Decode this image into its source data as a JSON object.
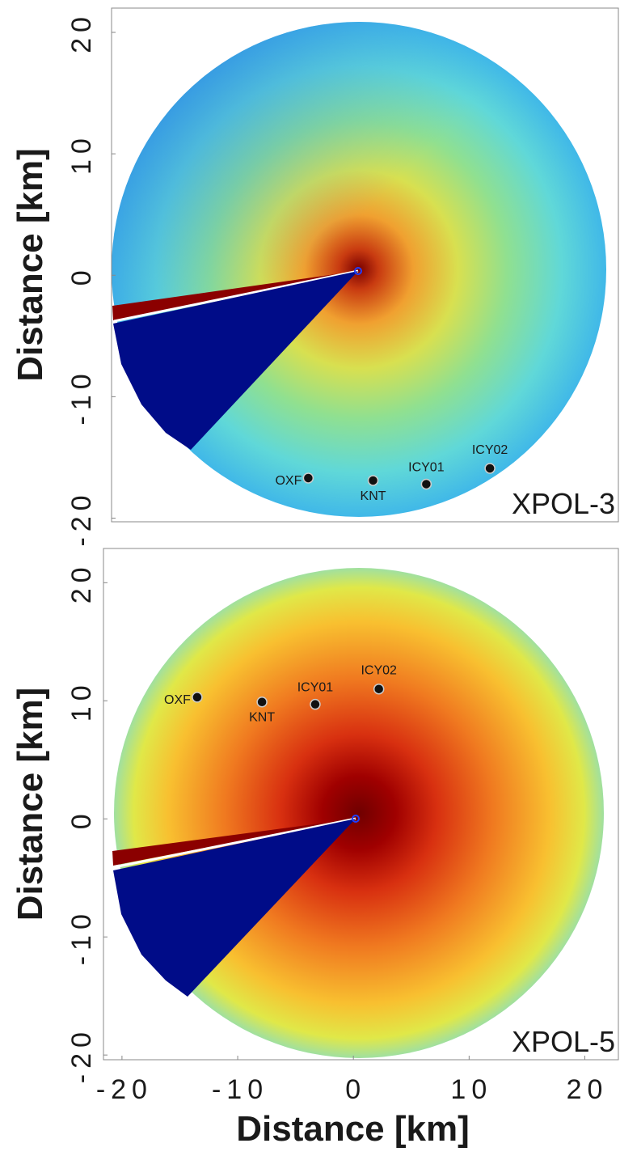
{
  "chart_data": [
    {
      "type": "scatter",
      "annotation": "XPOL-3",
      "ylabel": "Distance [km]",
      "x": [
        -3.9,
        1.7,
        6.3,
        11.8
      ],
      "y": [
        -16.7,
        -16.9,
        -17.2,
        -15.9
      ],
      "point_labels": [
        "OXF",
        "KNT",
        "ICY01",
        "ICY02"
      ],
      "color": "#111111",
      "xlim": [
        -20.9,
        22.9
      ],
      "ylim": [
        -20.3,
        22.0
      ],
      "yticks": [
        -20,
        -10,
        0,
        10,
        20
      ]
    },
    {
      "type": "scatter",
      "annotation": "XPOL-5",
      "ylabel": "Distance [km]",
      "xlabel": "Distance [km]",
      "x": [
        -13.5,
        -7.9,
        -3.3,
        2.2
      ],
      "y": [
        10.3,
        9.9,
        9.7,
        11.0
      ],
      "point_labels": [
        "OXF",
        "KNT",
        "ICY01",
        "ICY02"
      ],
      "color": "#111111",
      "xlim": [
        -21.6,
        22.9
      ],
      "ylim": [
        -20.4,
        22.9
      ],
      "xticks": [
        -20,
        -10,
        0,
        10,
        20
      ],
      "yticks": [
        -20,
        -10,
        0,
        10,
        20
      ]
    }
  ]
}
